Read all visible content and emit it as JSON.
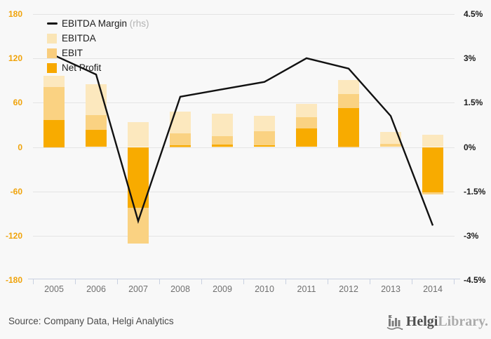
{
  "chart": {
    "legend": [
      {
        "label": "EBITDA Margin",
        "suffix": " (rhs)",
        "type": "line",
        "color": "#111111"
      },
      {
        "label": "EBITDA",
        "type": "box",
        "color": "#fae5b6"
      },
      {
        "label": "EBIT",
        "type": "box",
        "color": "#f9cd7d"
      },
      {
        "label": "Net Profit",
        "type": "box",
        "color": "#f7a800"
      }
    ],
    "left_axis": {
      "ticks": [
        "180",
        "120",
        "60",
        "0",
        "-60",
        "-120",
        "-180"
      ],
      "color": "#f0a30a"
    },
    "right_axis": {
      "ticks": [
        "4.5%",
        "3%",
        "1.5%",
        "0%",
        "-1.5%",
        "-3%",
        "-4.5%"
      ],
      "color": "#1a1a1a"
    }
  },
  "chart_data": {
    "type": "bar",
    "bar_mode": "overlap",
    "categories": [
      "2005",
      "2006",
      "2007",
      "2008",
      "2009",
      "2010",
      "2011",
      "2012",
      "2013",
      "2014"
    ],
    "series": [
      {
        "name": "EBITDA",
        "type": "bar",
        "color": "#fce8be",
        "values": [
          96,
          85,
          34,
          48,
          45,
          42,
          58,
          91,
          20,
          17
        ]
      },
      {
        "name": "EBIT",
        "type": "bar",
        "color": "#fad282",
        "values": [
          81,
          43,
          -130,
          19,
          15,
          21,
          40,
          72,
          4,
          -64
        ]
      },
      {
        "name": "Net Profit",
        "type": "bar",
        "color": "#f8ab00",
        "values": [
          37,
          23,
          -82,
          2,
          3,
          2,
          25,
          53,
          0,
          -61
        ]
      },
      {
        "name": "EBITDA Margin",
        "type": "line",
        "axis": "right",
        "color": "#111111",
        "values": [
          3.1,
          2.45,
          -2.5,
          1.7,
          1.95,
          2.2,
          3.0,
          2.65,
          1.05,
          -2.65
        ]
      }
    ],
    "title": "",
    "xlabel": "",
    "ylabel_left": "",
    "ylabel_right": "",
    "left_ylim": [
      -180,
      180
    ],
    "right_ylim": [
      -4.5,
      4.5
    ],
    "grid": true,
    "legend_position": "top-left"
  },
  "footer": {
    "source": "Source: Company Data, Helgi Analytics",
    "logo_bold": "Helgi",
    "logo_light": "Library."
  }
}
